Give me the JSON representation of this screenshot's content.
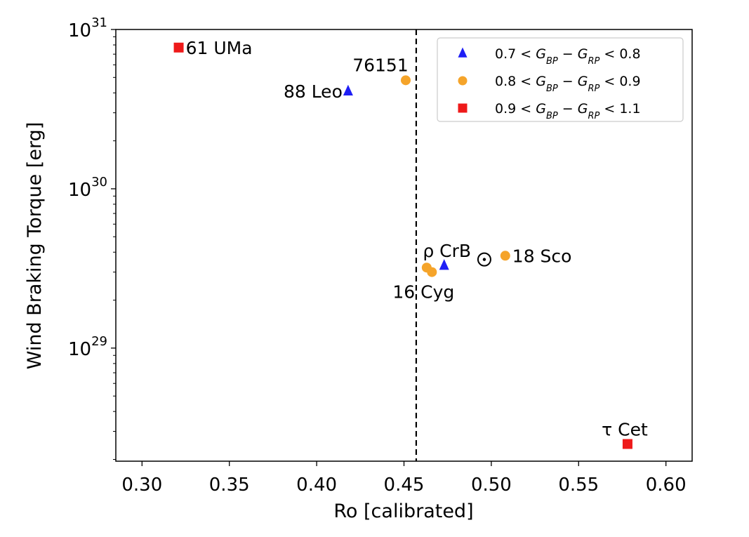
{
  "chart_data": {
    "type": "scatter",
    "title": "",
    "xlabel": "Ro [calibrated]",
    "ylabel": "Wind Braking Torque [erg]",
    "xlim": [
      0.285,
      0.615
    ],
    "ylim_log10": [
      28.29,
      31.0
    ],
    "yscale": "log",
    "x_ticks": [
      0.3,
      0.35,
      0.4,
      0.45,
      0.5,
      0.55,
      0.6
    ],
    "x_tick_labels": [
      "0.30",
      "0.35",
      "0.40",
      "0.45",
      "0.50",
      "0.55",
      "0.60"
    ],
    "y_ticks": [
      {
        "base": "10",
        "exp": "29",
        "log10": 29
      },
      {
        "base": "10",
        "exp": "30",
        "log10": 30
      },
      {
        "base": "10",
        "exp": "31",
        "log10": 31
      }
    ],
    "vline": {
      "x": 0.457,
      "style": "dashed"
    },
    "legend": {
      "position": "top-right",
      "entries": [
        {
          "series": "blue",
          "lo": "0.7",
          "hi": "0.8"
        },
        {
          "series": "orange",
          "lo": "0.8",
          "hi": "0.9"
        },
        {
          "series": "red",
          "lo": "0.9",
          "hi": "1.1"
        }
      ],
      "sym_G": "G",
      "sub_BP": "BP",
      "sub_RP": "RP",
      "lt": "<",
      "minus": "−"
    },
    "series": [
      {
        "name": "blue",
        "marker": "triangle",
        "color": "#1f1ff5",
        "points": [
          {
            "x": 0.418,
            "y": 4.1e+30,
            "label": "88 Leo"
          },
          {
            "x": 0.473,
            "y": 3.3e+29,
            "label": ""
          }
        ]
      },
      {
        "name": "orange",
        "marker": "circle",
        "color": "#f5a42a",
        "points": [
          {
            "x": 0.451,
            "y": 4.8e+30,
            "label": "76151"
          },
          {
            "x": 0.463,
            "y": 3.2e+29,
            "label": ""
          },
          {
            "x": 0.466,
            "y": 3e+29,
            "label": "16 Cyg"
          },
          {
            "x": 0.508,
            "y": 3.8e+29,
            "label": "18 Sco"
          }
        ]
      },
      {
        "name": "red",
        "marker": "square",
        "color": "#ee1a1a",
        "points": [
          {
            "x": 0.321,
            "y": 7.7e+30,
            "label": "61 UMa"
          },
          {
            "x": 0.578,
            "y": 2.5e+28,
            "label": "τ Cet"
          }
        ]
      }
    ],
    "annotations": [
      {
        "text": "ρ CrB",
        "near": "0.473"
      },
      {
        "text": "☉",
        "x": 0.496,
        "y": 3.6e+29,
        "note": "Sun"
      }
    ],
    "texts": {
      "rho_crb": "ρ CrB",
      "sun": "☉"
    }
  }
}
